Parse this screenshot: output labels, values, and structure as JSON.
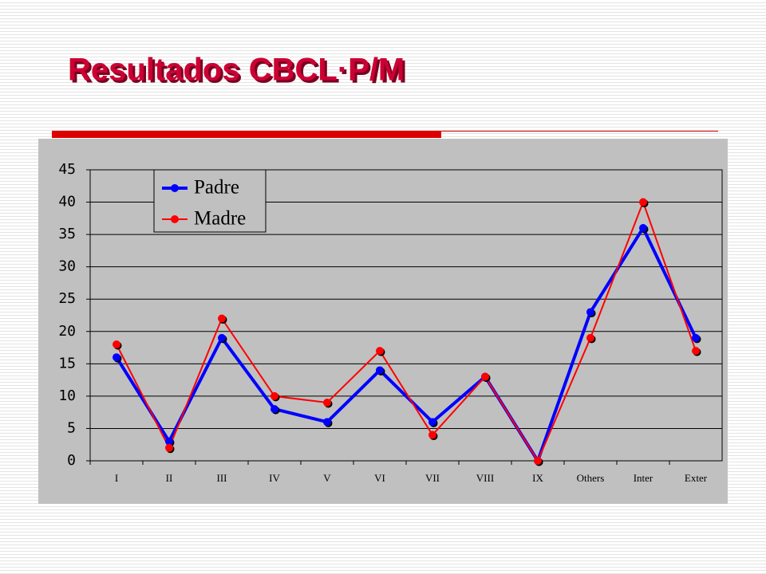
{
  "chart_data": {
    "type": "line",
    "title": "Resultados CBCL·P/M",
    "categories": [
      "I",
      "II",
      "III",
      "IV",
      "V",
      "VI",
      "VII",
      "VIII",
      "IX",
      "Others",
      "Inter",
      "Exter"
    ],
    "series": [
      {
        "name": "Padre",
        "color": "#0000ff",
        "values": [
          16,
          3,
          19,
          8,
          6,
          14,
          6,
          13,
          0,
          23,
          36,
          19
        ]
      },
      {
        "name": "Madre",
        "color": "#ff0000",
        "values": [
          18,
          2,
          22,
          10,
          9,
          17,
          4,
          13,
          0,
          19,
          40,
          17
        ]
      }
    ],
    "ylim": [
      0,
      45
    ],
    "yticks": [
      0,
      5,
      10,
      15,
      20,
      25,
      30,
      35,
      40,
      45
    ],
    "grid": true,
    "legend": "upper left"
  }
}
